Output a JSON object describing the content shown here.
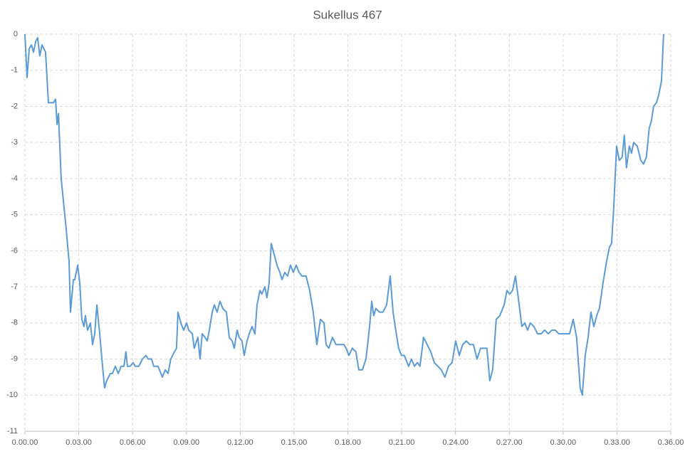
{
  "chart_data": {
    "type": "line",
    "title": "Sukellus 467",
    "color": "#5b9bd5",
    "grid": true,
    "xlim": [
      0,
      36
    ],
    "ylim": [
      -11,
      0
    ],
    "xticks": [
      {
        "value": 0,
        "label": "0.00.00"
      },
      {
        "value": 3,
        "label": "0.03.00"
      },
      {
        "value": 6,
        "label": "0.06.00"
      },
      {
        "value": 9,
        "label": "0.09.00"
      },
      {
        "value": 12,
        "label": "0.12.00"
      },
      {
        "value": 15,
        "label": "0.15.00"
      },
      {
        "value": 18,
        "label": "0.18.00"
      },
      {
        "value": 21,
        "label": "0.21.00"
      },
      {
        "value": 24,
        "label": "0.24.00"
      },
      {
        "value": 27,
        "label": "0.27.00"
      },
      {
        "value": 30,
        "label": "0.30.00"
      },
      {
        "value": 33,
        "label": "0.33.00"
      },
      {
        "value": 36,
        "label": "0.36.00"
      }
    ],
    "yticks": [
      0,
      -1,
      -2,
      -3,
      -4,
      -5,
      -6,
      -7,
      -8,
      -9,
      -10,
      -11
    ],
    "x": [
      0,
      0.12,
      0.24,
      0.36,
      0.48,
      0.6,
      0.71,
      0.83,
      0.95,
      1.15,
      1.31,
      1.59,
      1.71,
      1.79,
      1.87,
      2.02,
      2.18,
      2.3,
      2.46,
      2.54,
      2.7,
      2.78,
      2.94,
      3.06,
      3.17,
      3.29,
      3.37,
      3.49,
      3.65,
      3.77,
      3.89,
      4.01,
      4.17,
      4.29,
      4.44,
      4.56,
      4.76,
      4.88,
      5.04,
      5.2,
      5.36,
      5.52,
      5.63,
      5.71,
      5.87,
      6.03,
      6.15,
      6.35,
      6.55,
      6.75,
      6.87,
      7.06,
      7.18,
      7.42,
      7.66,
      7.82,
      7.98,
      8.13,
      8.33,
      8.45,
      8.53,
      8.69,
      8.85,
      9.01,
      9.13,
      9.33,
      9.44,
      9.64,
      9.76,
      9.88,
      10.04,
      10.16,
      10.28,
      10.44,
      10.56,
      10.71,
      10.87,
      11.03,
      11.23,
      11.39,
      11.55,
      11.67,
      11.83,
      11.94,
      12.1,
      12.22,
      12.38,
      12.5,
      12.66,
      12.82,
      12.94,
      13.1,
      13.21,
      13.37,
      13.49,
      13.61,
      13.73,
      13.89,
      14.05,
      14.21,
      14.33,
      14.48,
      14.64,
      14.8,
      14.96,
      15.12,
      15.28,
      15.44,
      15.67,
      15.87,
      16.07,
      16.27,
      16.47,
      16.67,
      16.79,
      16.94,
      17.14,
      17.34,
      17.58,
      17.78,
      17.9,
      18.06,
      18.25,
      18.45,
      18.61,
      18.81,
      19.01,
      19.21,
      19.33,
      19.44,
      19.56,
      19.76,
      19.96,
      20.16,
      20.36,
      20.52,
      20.67,
      20.83,
      20.99,
      21.15,
      21.39,
      21.55,
      21.71,
      21.87,
      22.02,
      22.22,
      22.42,
      22.62,
      22.82,
      23.02,
      23.21,
      23.41,
      23.61,
      23.81,
      24.01,
      24.21,
      24.4,
      24.6,
      24.8,
      25,
      25.2,
      25.4,
      25.6,
      25.75,
      25.91,
      26.07,
      26.27,
      26.47,
      26.71,
      26.87,
      27.02,
      27.18,
      27.34,
      27.5,
      27.7,
      27.86,
      28.02,
      28.17,
      28.37,
      28.57,
      28.77,
      28.97,
      29.17,
      29.37,
      29.56,
      29.76,
      29.96,
      30.36,
      30.56,
      30.75,
      30.95,
      31.07,
      31.23,
      31.39,
      31.55,
      31.71,
      31.87,
      32.02,
      32.22,
      32.42,
      32.58,
      32.7,
      32.82,
      32.98,
      33.13,
      33.29,
      33.41,
      33.53,
      33.69,
      33.81,
      33.93,
      34.13,
      34.33,
      34.48,
      34.64,
      34.8,
      34.92,
      35.04,
      35.2,
      35.32,
      35.48,
      35.6
    ],
    "values": [
      0,
      -1.2,
      -0.4,
      -0.3,
      -0.5,
      -0.2,
      -0.1,
      -0.6,
      -0.3,
      -0.5,
      -1.9,
      -1.9,
      -1.8,
      -2.5,
      -2.2,
      -4.0,
      -4.8,
      -5.4,
      -6.3,
      -7.7,
      -6.8,
      -6.8,
      -6.4,
      -6.9,
      -7.9,
      -8.1,
      -7.8,
      -8.2,
      -8.0,
      -8.6,
      -8.3,
      -7.5,
      -8.3,
      -9.0,
      -9.8,
      -9.6,
      -9.4,
      -9.4,
      -9.2,
      -9.4,
      -9.2,
      -9.2,
      -8.8,
      -9.2,
      -9.2,
      -9.1,
      -9.2,
      -9.2,
      -9.0,
      -8.9,
      -9.0,
      -9.0,
      -9.2,
      -9.2,
      -9.5,
      -9.3,
      -9.4,
      -9.0,
      -8.8,
      -8.7,
      -7.7,
      -8.0,
      -8.2,
      -8.0,
      -8.2,
      -8.3,
      -8.7,
      -8.4,
      -9.0,
      -8.3,
      -8.4,
      -8.5,
      -8.2,
      -7.7,
      -7.5,
      -7.7,
      -7.4,
      -7.6,
      -7.7,
      -8.4,
      -8.5,
      -8.7,
      -8.2,
      -8.4,
      -8.5,
      -8.9,
      -8.5,
      -8.3,
      -8.1,
      -8.3,
      -7.5,
      -7.1,
      -7.2,
      -7.0,
      -7.3,
      -6.9,
      -5.8,
      -6.1,
      -6.4,
      -6.6,
      -6.8,
      -6.6,
      -6.7,
      -6.4,
      -6.6,
      -6.4,
      -6.6,
      -6.7,
      -6.7,
      -7.1,
      -7.7,
      -8.6,
      -7.9,
      -8.0,
      -8.6,
      -8.7,
      -8.4,
      -8.6,
      -8.6,
      -8.6,
      -8.7,
      -8.9,
      -8.7,
      -8.8,
      -9.3,
      -9.3,
      -9.0,
      -8.1,
      -7.4,
      -7.8,
      -7.6,
      -7.7,
      -7.7,
      -7.5,
      -6.7,
      -7.7,
      -8.2,
      -8.7,
      -8.9,
      -8.9,
      -9.2,
      -9.0,
      -9.2,
      -9.1,
      -9.2,
      -8.4,
      -8.6,
      -8.8,
      -9.1,
      -9.2,
      -9.3,
      -9.5,
      -9.2,
      -9.1,
      -8.5,
      -8.9,
      -8.6,
      -8.5,
      -8.6,
      -8.6,
      -9.0,
      -8.7,
      -8.7,
      -8.7,
      -9.6,
      -9.3,
      -7.9,
      -7.8,
      -7.5,
      -7.1,
      -7.2,
      -7.1,
      -6.7,
      -7.3,
      -8.1,
      -8.0,
      -8.2,
      -8.0,
      -8.1,
      -8.3,
      -8.3,
      -8.2,
      -8.3,
      -8.2,
      -8.2,
      -8.3,
      -8.3,
      -8.3,
      -7.9,
      -8.4,
      -9.8,
      -10.0,
      -8.9,
      -8.4,
      -7.7,
      -8.1,
      -7.8,
      -7.6,
      -6.9,
      -6.3,
      -5.9,
      -5.8,
      -4.8,
      -3.1,
      -3.5,
      -3.4,
      -2.8,
      -3.7,
      -3.1,
      -3.3,
      -3.0,
      -3.1,
      -3.5,
      -3.6,
      -3.4,
      -2.6,
      -2.4,
      -2.0,
      -1.9,
      -1.7,
      -1.3,
      0
    ]
  }
}
